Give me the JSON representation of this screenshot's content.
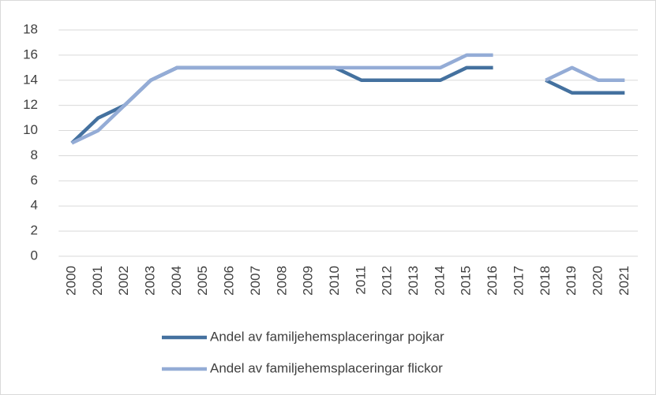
{
  "chart_data": {
    "type": "line",
    "categories": [
      "2000",
      "2001",
      "2002",
      "2003",
      "2004",
      "2005",
      "2006",
      "2007",
      "2008",
      "2009",
      "2010",
      "2011",
      "2012",
      "2013",
      "2014",
      "2015",
      "2016",
      "2017",
      "2018",
      "2019",
      "2020",
      "2021"
    ],
    "series": [
      {
        "name": "Andel av familjehemsplaceringar pojkar",
        "color": "#44719f",
        "values": [
          9,
          11,
          12,
          14,
          15,
          15,
          15,
          15,
          15,
          15,
          15,
          14,
          14,
          14,
          14,
          15,
          15,
          null,
          14,
          13,
          13,
          13
        ]
      },
      {
        "name": "Andel av familjehemsplaceringar flickor",
        "color": "#94acd6",
        "values": [
          9,
          10,
          12,
          14,
          15,
          15,
          15,
          15,
          15,
          15,
          15,
          15,
          15,
          15,
          15,
          16,
          16,
          null,
          14,
          15,
          14,
          14
        ]
      }
    ],
    "ylim": [
      0,
      18
    ],
    "yticks": [
      0,
      2,
      4,
      6,
      8,
      10,
      12,
      14,
      16,
      18
    ],
    "grid": true,
    "legend": "bottom"
  }
}
